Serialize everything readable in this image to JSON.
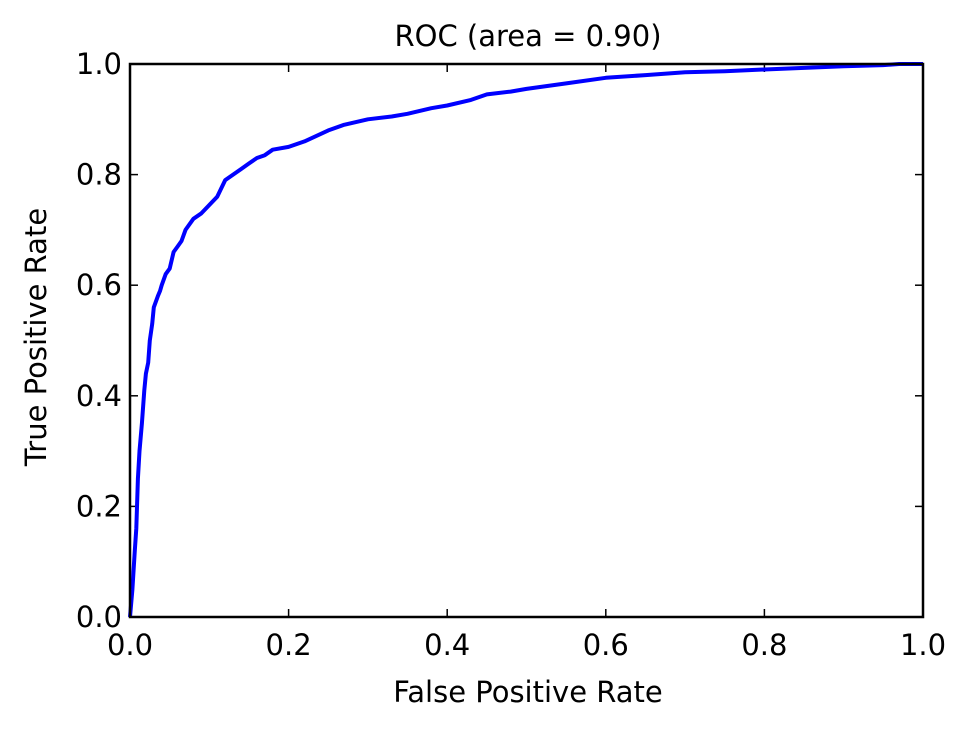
{
  "chart_data": {
    "type": "line",
    "title": "ROC (area = 0.90)",
    "xlabel": "False Positive Rate",
    "ylabel": "True Positive Rate",
    "xlim": [
      0.0,
      1.0
    ],
    "ylim": [
      0.0,
      1.0
    ],
    "x_ticks": [
      "0.0",
      "0.2",
      "0.4",
      "0.6",
      "0.8",
      "1.0"
    ],
    "y_ticks": [
      "0.0",
      "0.2",
      "0.4",
      "0.6",
      "0.8",
      "1.0"
    ],
    "grid": false,
    "series": [
      {
        "name": "ROC",
        "color": "#0000ff",
        "x": [
          0.0,
          0.003,
          0.006,
          0.008,
          0.01,
          0.012,
          0.015,
          0.018,
          0.02,
          0.023,
          0.025,
          0.028,
          0.03,
          0.035,
          0.038,
          0.04,
          0.045,
          0.05,
          0.055,
          0.06,
          0.065,
          0.07,
          0.08,
          0.09,
          0.1,
          0.11,
          0.12,
          0.13,
          0.14,
          0.15,
          0.16,
          0.17,
          0.18,
          0.2,
          0.22,
          0.25,
          0.27,
          0.3,
          0.33,
          0.35,
          0.38,
          0.4,
          0.43,
          0.45,
          0.48,
          0.5,
          0.55,
          0.6,
          0.65,
          0.7,
          0.75,
          0.8,
          0.85,
          0.9,
          0.95,
          0.97,
          1.0
        ],
        "y": [
          0.0,
          0.05,
          0.12,
          0.16,
          0.25,
          0.3,
          0.35,
          0.41,
          0.44,
          0.46,
          0.5,
          0.53,
          0.56,
          0.58,
          0.59,
          0.6,
          0.62,
          0.63,
          0.66,
          0.67,
          0.68,
          0.7,
          0.72,
          0.73,
          0.745,
          0.76,
          0.79,
          0.8,
          0.81,
          0.82,
          0.83,
          0.835,
          0.845,
          0.85,
          0.86,
          0.88,
          0.89,
          0.9,
          0.905,
          0.91,
          0.92,
          0.925,
          0.935,
          0.945,
          0.95,
          0.955,
          0.965,
          0.975,
          0.98,
          0.985,
          0.987,
          0.99,
          0.993,
          0.996,
          0.998,
          1.0,
          1.0
        ]
      }
    ]
  }
}
